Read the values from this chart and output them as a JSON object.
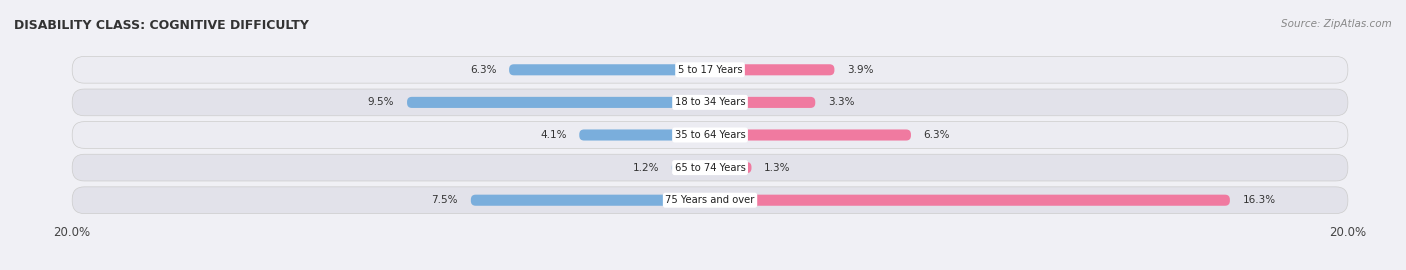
{
  "title": "DISABILITY CLASS: COGNITIVE DIFFICULTY",
  "source": "Source: ZipAtlas.com",
  "categories": [
    "5 to 17 Years",
    "18 to 34 Years",
    "35 to 64 Years",
    "65 to 74 Years",
    "75 Years and over"
  ],
  "male_values": [
    6.3,
    9.5,
    4.1,
    1.2,
    7.5
  ],
  "female_values": [
    3.9,
    3.3,
    6.3,
    1.3,
    16.3
  ],
  "max_val": 20.0,
  "male_color": "#7aaedc",
  "female_color": "#f07aa0",
  "row_bg_colors": [
    "#ececf2",
    "#e2e2ea",
    "#ececf2",
    "#e2e2ea",
    "#e2e2ea"
  ],
  "fig_bg_color": "#f0f0f5",
  "title_color": "#333333",
  "value_color": "#333333",
  "cat_label_bg": "#ffffff",
  "x_axis_label_left": "20.0%",
  "x_axis_label_right": "20.0%"
}
